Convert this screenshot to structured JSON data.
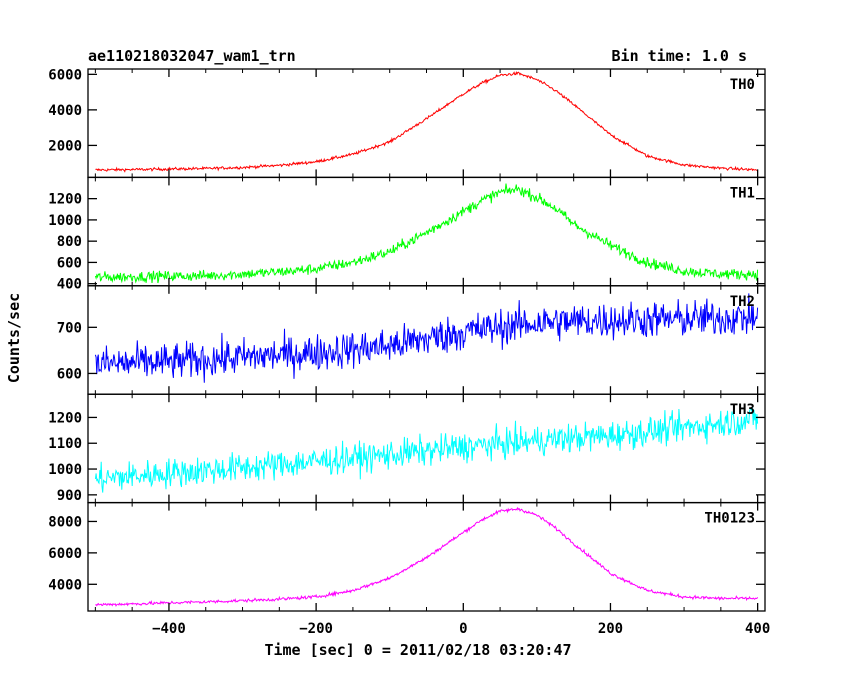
{
  "header": {
    "title": "ae110218032047_wam1_trn",
    "bin_time": "Bin time: 1.0 s"
  },
  "axes": {
    "xlabel": "Time [sec] 0 = 2011/02/18 03:20:47",
    "ylabel": "Counts/sec"
  },
  "chart_data": {
    "type": "line",
    "title": "ae110218032047_wam1_trn",
    "subtitle": "Bin time: 1.0 s",
    "xlabel": "Time [sec] 0 = 2011/02/18 03:20:47",
    "ylabel": "Counts/sec",
    "xlim": [
      -510,
      410
    ],
    "x_ticks": [
      -400,
      -200,
      0,
      200,
      400
    ],
    "x_tick_labels": [
      "−400",
      "−200",
      "0",
      "200",
      "400"
    ],
    "bin_seconds": 1.0,
    "grid": false,
    "legend": "none",
    "series": [
      {
        "name": "TH0",
        "color": "#ff0000",
        "ylim": [
          200,
          6300
        ],
        "y_ticks": [
          2000,
          4000,
          6000
        ],
        "x_data": [
          -500,
          -450,
          -400,
          -350,
          -300,
          -250,
          -200,
          -150,
          -100,
          -50,
          0,
          25,
          50,
          75,
          100,
          125,
          150,
          200,
          250,
          300,
          350,
          400
        ],
        "y_data": [
          620,
          640,
          670,
          700,
          760,
          880,
          1080,
          1500,
          2200,
          3500,
          4900,
          5500,
          5950,
          6050,
          5700,
          5100,
          4300,
          2600,
          1400,
          900,
          720,
          620
        ],
        "noise": 55
      },
      {
        "name": "TH1",
        "color": "#00ff00",
        "ylim": [
          380,
          1400
        ],
        "y_ticks": [
          400,
          600,
          800,
          1000,
          1200
        ],
        "x_data": [
          -500,
          -450,
          -400,
          -350,
          -300,
          -250,
          -200,
          -150,
          -100,
          -50,
          0,
          25,
          50,
          75,
          100,
          125,
          150,
          200,
          250,
          300,
          350,
          400
        ],
        "y_data": [
          460,
          465,
          470,
          475,
          490,
          510,
          540,
          600,
          700,
          880,
          1080,
          1180,
          1260,
          1290,
          1210,
          1110,
          960,
          760,
          600,
          520,
          490,
          490
        ],
        "noise": 35
      },
      {
        "name": "TH2",
        "color": "#0000ff",
        "ylim": [
          555,
          790
        ],
        "y_ticks": [
          600,
          700
        ],
        "x_data": [
          -500,
          -400,
          -300,
          -200,
          -100,
          0,
          100,
          200,
          300,
          400
        ],
        "y_data": [
          620,
          625,
          635,
          645,
          660,
          690,
          710,
          715,
          718,
          722
        ],
        "noise": 28
      },
      {
        "name": "TH3",
        "color": "#00ffff",
        "ylim": [
          870,
          1290
        ],
        "y_ticks": [
          900,
          1000,
          1100,
          1200
        ],
        "x_data": [
          -500,
          -400,
          -300,
          -200,
          -100,
          0,
          100,
          200,
          300,
          400
        ],
        "y_data": [
          960,
          985,
          1005,
          1030,
          1055,
          1085,
          1110,
          1130,
          1160,
          1195
        ],
        "noise": 40
      },
      {
        "name": "TH0123",
        "color": "#ff00ff",
        "ylim": [
          2300,
          9200
        ],
        "y_ticks": [
          4000,
          6000,
          8000
        ],
        "x_data": [
          -500,
          -450,
          -400,
          -350,
          -300,
          -250,
          -200,
          -150,
          -100,
          -50,
          0,
          25,
          50,
          75,
          100,
          125,
          150,
          200,
          250,
          300,
          350,
          400
        ],
        "y_data": [
          2700,
          2750,
          2820,
          2880,
          2960,
          3050,
          3200,
          3600,
          4400,
          5700,
          7300,
          8100,
          8650,
          8800,
          8400,
          7600,
          6600,
          4700,
          3600,
          3200,
          3100,
          3100
        ],
        "noise": 70
      }
    ]
  }
}
